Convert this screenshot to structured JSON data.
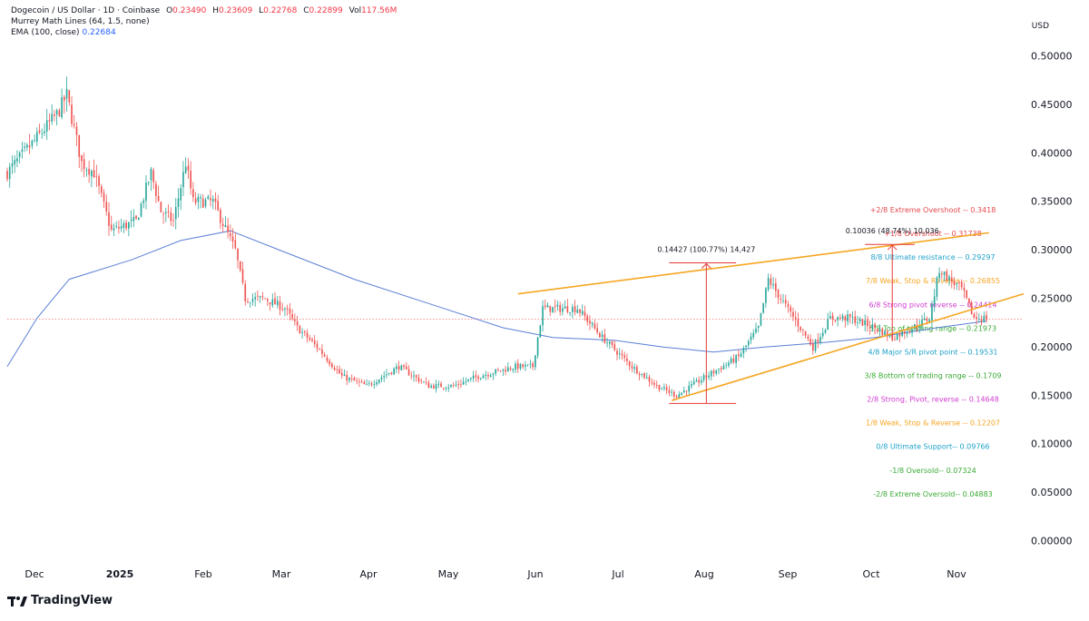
{
  "legend": {
    "symbol": "Dogecoin / US Dollar · 1D · Coinbase",
    "open_label": "O",
    "open": "0.23490",
    "high_label": "H",
    "high": "0.23609",
    "low_label": "L",
    "low": "0.22768",
    "close_label": "C",
    "close": "0.22899",
    "vol_label": "Vol",
    "vol": "117.56M",
    "murrey": "Murrey Math Lines (64, 1.5, none)",
    "ema_label": "EMA (100, close)",
    "ema": "0.22684"
  },
  "currency": "USD",
  "brand": "TradingView",
  "colors": {
    "up": "#26a69a",
    "down": "#ef5350",
    "ema": "#5b7fd6",
    "channel": "#f5a623",
    "measure": "#e53935"
  },
  "chart_data": {
    "type": "candlestick",
    "y_axis": {
      "ticks": [
        "0.50000",
        "0.45000",
        "0.40000",
        "0.35000",
        "0.30000",
        "0.25000",
        "0.20000",
        "0.15000",
        "0.10000",
        "0.05000",
        "0.00000"
      ],
      "ylim": [
        0,
        0.51
      ]
    },
    "x_axis": {
      "ticks": [
        "Dec",
        "2025",
        "Feb",
        "Mar",
        "Apr",
        "May",
        "Jun",
        "Jul",
        "Aug",
        "Sep",
        "Oct",
        "Nov"
      ]
    },
    "price_keypoints": [
      {
        "d": 0,
        "p": 0.38
      },
      {
        "d": 10,
        "p": 0.41
      },
      {
        "d": 20,
        "p": 0.44
      },
      {
        "d": 24,
        "p": 0.46
      },
      {
        "d": 30,
        "p": 0.39
      },
      {
        "d": 35,
        "p": 0.38
      },
      {
        "d": 42,
        "p": 0.32
      },
      {
        "d": 52,
        "p": 0.33
      },
      {
        "d": 58,
        "p": 0.38
      },
      {
        "d": 62,
        "p": 0.34
      },
      {
        "d": 67,
        "p": 0.33
      },
      {
        "d": 72,
        "p": 0.39
      },
      {
        "d": 75,
        "p": 0.35
      },
      {
        "d": 83,
        "p": 0.35
      },
      {
        "d": 92,
        "p": 0.3
      },
      {
        "d": 96,
        "p": 0.25
      },
      {
        "d": 104,
        "p": 0.25
      },
      {
        "d": 112,
        "p": 0.24
      },
      {
        "d": 117,
        "p": 0.22
      },
      {
        "d": 125,
        "p": 0.2
      },
      {
        "d": 135,
        "p": 0.17
      },
      {
        "d": 145,
        "p": 0.16
      },
      {
        "d": 158,
        "p": 0.18
      },
      {
        "d": 170,
        "p": 0.16
      },
      {
        "d": 180,
        "p": 0.16
      },
      {
        "d": 190,
        "p": 0.17
      },
      {
        "d": 205,
        "p": 0.18
      },
      {
        "d": 212,
        "p": 0.18
      },
      {
        "d": 216,
        "p": 0.24
      },
      {
        "d": 220,
        "p": 0.24
      },
      {
        "d": 230,
        "p": 0.24
      },
      {
        "d": 240,
        "p": 0.21
      },
      {
        "d": 252,
        "p": 0.18
      },
      {
        "d": 262,
        "p": 0.16
      },
      {
        "d": 270,
        "p": 0.15
      },
      {
        "d": 282,
        "p": 0.17
      },
      {
        "d": 295,
        "p": 0.19
      },
      {
        "d": 303,
        "p": 0.22
      },
      {
        "d": 307,
        "p": 0.27
      },
      {
        "d": 312,
        "p": 0.25
      },
      {
        "d": 320,
        "p": 0.22
      },
      {
        "d": 325,
        "p": 0.2
      },
      {
        "d": 332,
        "p": 0.23
      },
      {
        "d": 340,
        "p": 0.23
      },
      {
        "d": 350,
        "p": 0.22
      },
      {
        "d": 357,
        "p": 0.21
      },
      {
        "d": 365,
        "p": 0.22
      },
      {
        "d": 372,
        "p": 0.23
      },
      {
        "d": 376,
        "p": 0.28
      },
      {
        "d": 380,
        "p": 0.27
      },
      {
        "d": 385,
        "p": 0.26
      },
      {
        "d": 390,
        "p": 0.23
      },
      {
        "d": 395,
        "p": 0.23
      }
    ],
    "ema_keypoints": [
      {
        "d": 0,
        "p": 0.18
      },
      {
        "d": 12,
        "p": 0.23
      },
      {
        "d": 25,
        "p": 0.27
      },
      {
        "d": 50,
        "p": 0.29
      },
      {
        "d": 70,
        "p": 0.31
      },
      {
        "d": 90,
        "p": 0.32
      },
      {
        "d": 110,
        "p": 0.3
      },
      {
        "d": 140,
        "p": 0.27
      },
      {
        "d": 170,
        "p": 0.245
      },
      {
        "d": 200,
        "p": 0.22
      },
      {
        "d": 220,
        "p": 0.21
      },
      {
        "d": 245,
        "p": 0.207
      },
      {
        "d": 265,
        "p": 0.2
      },
      {
        "d": 285,
        "p": 0.195
      },
      {
        "d": 305,
        "p": 0.2
      },
      {
        "d": 330,
        "p": 0.205
      },
      {
        "d": 350,
        "p": 0.21
      },
      {
        "d": 375,
        "p": 0.22
      },
      {
        "d": 395,
        "p": 0.227
      }
    ],
    "current_price": 0.229,
    "channel": {
      "upper": [
        {
          "d": 206,
          "p": 0.255
        },
        {
          "d": 396,
          "p": 0.318
        }
      ],
      "lower": [
        {
          "d": 268,
          "p": 0.145
        },
        {
          "d": 410,
          "p": 0.255
        }
      ]
    },
    "measurements": [
      {
        "label": "0.14427 (100.77%) 14,427",
        "d": 282,
        "p_low": 0.142,
        "p_high": 0.287,
        "d_left": 267,
        "d_right": 294
      },
      {
        "label": "0.10036 (48.74%) 10,036",
        "d": 357,
        "p_low": 0.206,
        "p_high": 0.306,
        "d_left": 346,
        "d_right": 366
      }
    ],
    "murrey_levels": [
      {
        "label": "+2/8 Extreme Overshoot --  0.3418",
        "price": 0.3418,
        "color": "#e5484d"
      },
      {
        "label": "+1/8 Overshoot --  0.31738",
        "price": 0.31738,
        "color": "#e5484d"
      },
      {
        "label": "8/8 Ultimate resistance --  0.29297",
        "price": 0.29297,
        "color": "#1fa2c9"
      },
      {
        "label": "7/8 Weak, Stop & Reverse --  0.26855",
        "price": 0.26855,
        "color": "#f5a623"
      },
      {
        "label": "6/8 Strong pivot reverse --  0.24414",
        "price": 0.24414,
        "color": "#d03fd0"
      },
      {
        "label": "5/8 Top of trading range --  0.21973",
        "price": 0.21973,
        "color": "#3aaa35"
      },
      {
        "label": "4/8 Major S/R pivot point --  0.19531",
        "price": 0.19531,
        "color": "#1fa2c9"
      },
      {
        "label": "3/8 Bottom of trading range --  0.1709",
        "price": 0.1709,
        "color": "#3aaa35"
      },
      {
        "label": "2/8 Strong, Pivot, reverse --  0.14648",
        "price": 0.14648,
        "color": "#d03fd0"
      },
      {
        "label": "1/8 Weak, Stop & Reverse --  0.12207",
        "price": 0.12207,
        "color": "#f5a623"
      },
      {
        "label": "0/8 Ultimate Support--  0.09766",
        "price": 0.09766,
        "color": "#1fa2c9"
      },
      {
        "label": "-1/8 Oversold--  0.07324",
        "price": 0.07324,
        "color": "#3aaa35"
      },
      {
        "label": "-2/8 Extreme Oversold--  0.04883",
        "price": 0.04883,
        "color": "#3aaa35"
      }
    ]
  }
}
